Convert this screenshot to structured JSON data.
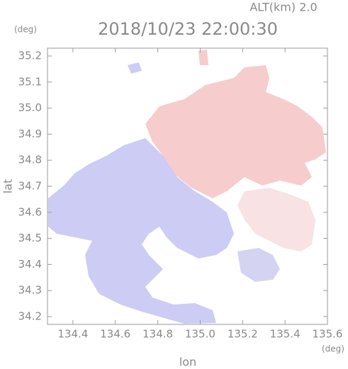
{
  "chart_data": {
    "type": "map",
    "title": "2018/10/23 22:00:30",
    "subtitle": "ALT(km) 2.0",
    "x_label": "lon",
    "y_label": "lat",
    "x_unit": "(deg)",
    "y_unit": "(deg)",
    "xlim": [
      134.28,
      135.6
    ],
    "ylim": [
      34.17,
      35.23
    ],
    "xticks": [
      134.4,
      134.6,
      134.8,
      {
        "value": 135,
        "label": "135.0"
      },
      135.2,
      135.4,
      135.6
    ],
    "yticks": [
      34.2,
      34.3,
      34.4,
      34.5,
      34.6,
      34.7,
      34.8,
      34.9,
      {
        "value": 35,
        "label": "35.0"
      },
      35.1,
      35.2
    ]
  }
}
